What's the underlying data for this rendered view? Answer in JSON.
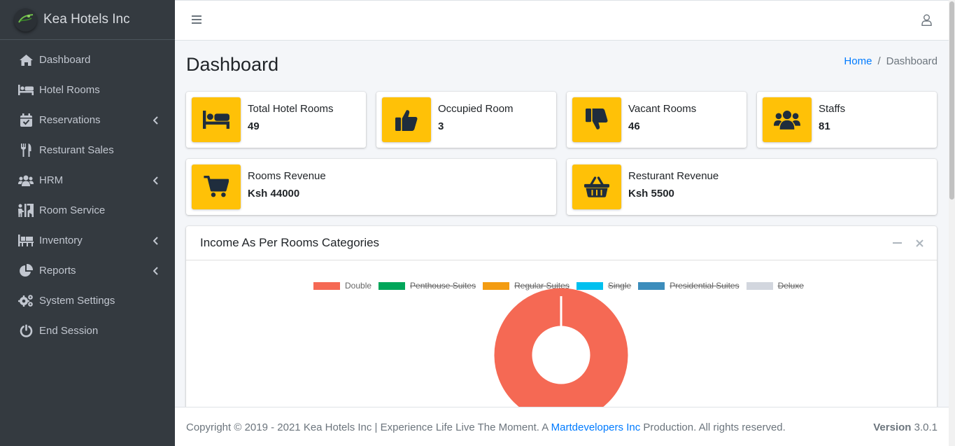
{
  "brand": {
    "name": "Kea Hotels Inc"
  },
  "sidebar": {
    "items": [
      {
        "label": "Dashboard",
        "icon": "home-icon",
        "has_submenu": false
      },
      {
        "label": "Hotel Rooms",
        "icon": "bed-icon",
        "has_submenu": false
      },
      {
        "label": "Reservations",
        "icon": "calendar-check-icon",
        "has_submenu": true
      },
      {
        "label": "Resturant Sales",
        "icon": "utensils-icon",
        "has_submenu": false
      },
      {
        "label": "HRM",
        "icon": "users-icon",
        "has_submenu": true
      },
      {
        "label": "Room Service",
        "icon": "person-booth-icon",
        "has_submenu": false
      },
      {
        "label": "Inventory",
        "icon": "pallet-icon",
        "has_submenu": true
      },
      {
        "label": "Reports",
        "icon": "chart-pie-icon",
        "has_submenu": true
      },
      {
        "label": "System Settings",
        "icon": "cogs-icon",
        "has_submenu": false
      },
      {
        "label": "End Session",
        "icon": "power-off-icon",
        "has_submenu": false
      }
    ]
  },
  "header": {
    "page_title": "Dashboard"
  },
  "breadcrumb": {
    "home": "Home",
    "current": "Dashboard"
  },
  "info_boxes": [
    {
      "label": "Total Hotel Rooms",
      "value": "49",
      "icon": "bed-icon"
    },
    {
      "label": "Occupied Room",
      "value": "3",
      "icon": "thumbs-up-icon"
    },
    {
      "label": "Vacant Rooms",
      "value": "46",
      "icon": "thumbs-down-icon"
    },
    {
      "label": "Staffs",
      "value": "81",
      "icon": "users-icon"
    },
    {
      "label": "Rooms Revenue",
      "value": "Ksh 44000",
      "icon": "shopping-cart-icon"
    },
    {
      "label": "Resturant Revenue",
      "value": "Ksh 5500",
      "icon": "shopping-basket-icon"
    }
  ],
  "income_card": {
    "title": "Income As Per Rooms Categories"
  },
  "chart_data": {
    "type": "pie",
    "variant": "doughnut",
    "categories": [
      "Double",
      "Penthouse Suites",
      "Regular Suites",
      "Single",
      "Presidential Suites",
      "Deluxe"
    ],
    "colors": [
      "#f56954",
      "#00a65a",
      "#f39c12",
      "#00c0ef",
      "#3c8dbc",
      "#d2d6de"
    ],
    "hidden": [
      false,
      true,
      true,
      true,
      true,
      true
    ],
    "values": [
      1,
      0,
      0,
      0,
      0,
      0
    ],
    "legend_position": "top"
  },
  "footer": {
    "copyright": "Copyright © 2019 - 2021 Kea Hotels Inc | Experience Life Live The Moment. A ",
    "link": "Martdevelopers Inc",
    "suffix": " Production. All rights reserved.",
    "version_label": "Version",
    "version": "3.0.1"
  },
  "colors": {
    "sidebar_bg": "#343a40",
    "info_icon_bg": "#ffc107",
    "link": "#007bff"
  }
}
